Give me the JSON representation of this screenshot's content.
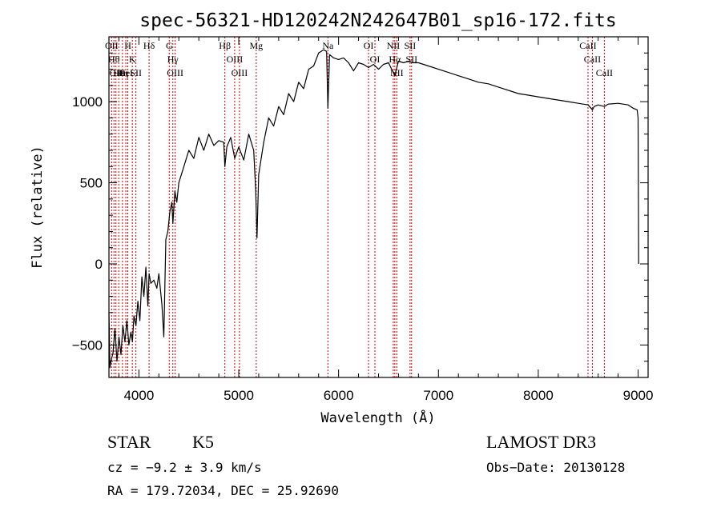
{
  "chart_data": {
    "type": "line",
    "title": "spec-56321-HD120242N242647B01_sp16-172.fits",
    "xlabel": "Wavelength (Å)",
    "ylabel": "Flux (relative)",
    "xlim": [
      3700,
      9100
    ],
    "ylim": [
      -700,
      1400
    ],
    "x_ticks": [
      4000,
      5000,
      6000,
      7000,
      8000,
      9000
    ],
    "y_ticks": [
      -500,
      0,
      500,
      1000
    ],
    "grid": false,
    "series": [
      {
        "name": "spectrum",
        "x": [
          3700,
          3710,
          3720,
          3740,
          3760,
          3780,
          3800,
          3820,
          3840,
          3860,
          3880,
          3900,
          3920,
          3935,
          3950,
          3970,
          3990,
          4010,
          4030,
          4050,
          4070,
          4090,
          4102,
          4120,
          4150,
          4180,
          4200,
          4230,
          4250,
          4270,
          4290,
          4310,
          4330,
          4340,
          4360,
          4380,
          4400,
          4450,
          4500,
          4550,
          4600,
          4650,
          4700,
          4750,
          4800,
          4850,
          4861,
          4880,
          4920,
          4960,
          5000,
          5050,
          5100,
          5150,
          5170,
          5183,
          5200,
          5250,
          5300,
          5350,
          5400,
          5450,
          5500,
          5550,
          5600,
          5650,
          5700,
          5750,
          5800,
          5850,
          5880,
          5893,
          5910,
          5950,
          6000,
          6050,
          6100,
          6150,
          6200,
          6250,
          6300,
          6350,
          6400,
          6450,
          6500,
          6563,
          6600,
          6650,
          6700,
          6750,
          6800,
          6900,
          7000,
          7100,
          7200,
          7300,
          7400,
          7500,
          7600,
          7700,
          7800,
          7900,
          8000,
          8100,
          8200,
          8300,
          8400,
          8500,
          8542,
          8560,
          8600,
          8662,
          8700,
          8800,
          8900,
          8950,
          8990,
          9000,
          9005
        ],
        "y": [
          -300,
          -640,
          -600,
          -550,
          -400,
          -600,
          -450,
          -560,
          -380,
          -480,
          -350,
          -500,
          -420,
          -480,
          -320,
          -380,
          -230,
          -350,
          -80,
          -200,
          -20,
          -260,
          -60,
          -120,
          -100,
          -150,
          -60,
          -250,
          -450,
          150,
          200,
          320,
          380,
          250,
          450,
          380,
          500,
          600,
          700,
          650,
          780,
          700,
          800,
          730,
          760,
          750,
          600,
          720,
          780,
          650,
          720,
          640,
          800,
          700,
          450,
          160,
          550,
          750,
          900,
          850,
          970,
          920,
          1050,
          1000,
          1120,
          1080,
          1200,
          1220,
          1300,
          1320,
          1310,
          960,
          1290,
          1270,
          1260,
          1270,
          1240,
          1190,
          1240,
          1230,
          1210,
          1230,
          1200,
          1230,
          1240,
          1160,
          1250,
          1240,
          1250,
          1240,
          1240,
          1220,
          1200,
          1180,
          1160,
          1140,
          1120,
          1110,
          1090,
          1070,
          1050,
          1040,
          1030,
          1020,
          1010,
          1000,
          990,
          980,
          950,
          970,
          980,
          970,
          985,
          990,
          980,
          960,
          950,
          900,
          0
        ]
      }
    ],
    "line_markers": [
      {
        "wavelength": 3727,
        "label": "OII"
      },
      {
        "wavelength": 3750,
        "label": "Hθ"
      },
      {
        "wavelength": 3770,
        "label": "OII"
      },
      {
        "wavelength": 3798,
        "label": "Hε"
      },
      {
        "wavelength": 3835,
        "label": "Hη"
      },
      {
        "wavelength": 3869,
        "label": "HeI"
      },
      {
        "wavelength": 3889,
        "label": "H"
      },
      {
        "wavelength": 3934,
        "label": "K"
      },
      {
        "wavelength": 3970,
        "label": "SII"
      },
      {
        "wavelength": 4102,
        "label": "Hδ"
      },
      {
        "wavelength": 4304,
        "label": "G"
      },
      {
        "wavelength": 4340,
        "label": "Hγ"
      },
      {
        "wavelength": 4363,
        "label": "OIII"
      },
      {
        "wavelength": 4861,
        "label": "Hβ"
      },
      {
        "wavelength": 4959,
        "label": "OIII"
      },
      {
        "wavelength": 5007,
        "label": "OIII"
      },
      {
        "wavelength": 5175,
        "label": "Mg"
      },
      {
        "wavelength": 5893,
        "label": "Na"
      },
      {
        "wavelength": 6300,
        "label": "OI"
      },
      {
        "wavelength": 6364,
        "label": "OI"
      },
      {
        "wavelength": 6548,
        "label": "NII"
      },
      {
        "wavelength": 6563,
        "label": "Hα"
      },
      {
        "wavelength": 6583,
        "label": "NII"
      },
      {
        "wavelength": 6716,
        "label": "SII"
      },
      {
        "wavelength": 6731,
        "label": "SII"
      },
      {
        "wavelength": 8498,
        "label": "CaII"
      },
      {
        "wavelength": 8542,
        "label": "CaII"
      },
      {
        "wavelength": 8662,
        "label": "CaII"
      }
    ]
  },
  "info": {
    "object_class": "STAR",
    "subclass": "K5",
    "survey": "LAMOST DR3",
    "cz": "cz = −9.2 ± 3.9 km/s",
    "obs_date": "Obs−Date: 20130128",
    "coords": "RA = 179.72034, DEC =  25.92690"
  },
  "colors": {
    "spectrum": "#000000",
    "markers": "#cc0000",
    "axes": "#000000"
  }
}
